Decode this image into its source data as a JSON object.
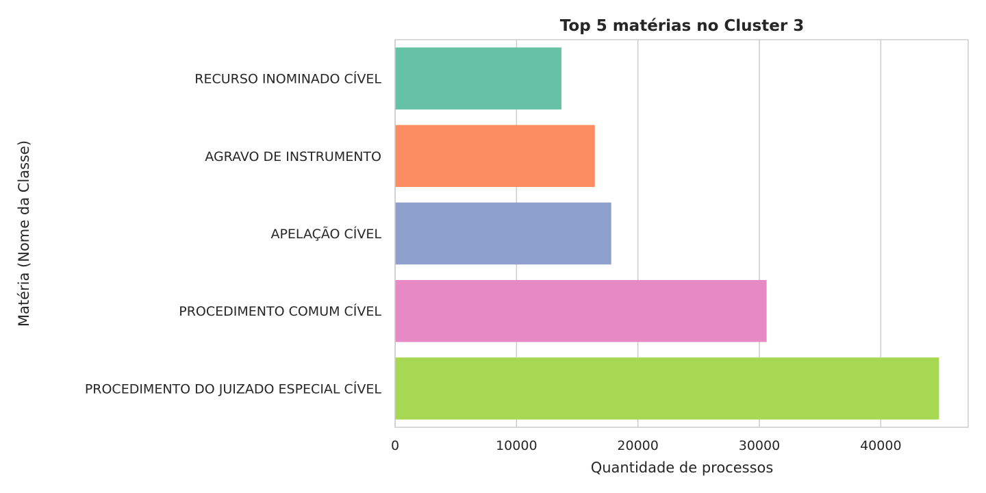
{
  "chart_data": {
    "type": "bar",
    "orientation": "horizontal",
    "title": "Top 5 matérias no Cluster 3",
    "xlabel": "Quantidade de processos",
    "ylabel": "Matéria (Nome da Classe)",
    "categories": [
      "RECURSO INOMINADO CÍVEL",
      "AGRAVO DE INSTRUMENTO",
      "APELAÇÃO CÍVEL",
      "PROCEDIMENTO COMUM CÍVEL",
      "PROCEDIMENTO DO JUIZADO ESPECIAL CÍVEL"
    ],
    "values": [
      13700,
      16450,
      17800,
      30600,
      44800
    ],
    "colors": [
      "#66c2a5",
      "#fc8d62",
      "#8da0cb",
      "#e78ac3",
      "#a6d854"
    ],
    "xlim": [
      0,
      47200
    ],
    "xticks": [
      0,
      10000,
      20000,
      30000,
      40000
    ],
    "grid": true
  }
}
